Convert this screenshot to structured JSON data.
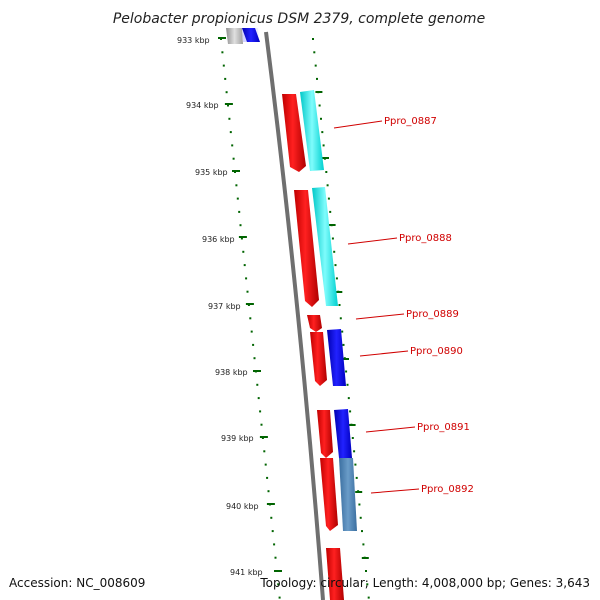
{
  "title": "Pelobacter propionicus DSM 2379, complete genome",
  "footer": {
    "accession": "Accession: NC_008609",
    "topology": "Topology: circular; Length: 4,008,000 bp; Genes: 3,643"
  },
  "colors": {
    "forward_strand": "#ff0000",
    "reverse_cyan": "#00e5e5",
    "reverse_blue": "#0000ee",
    "reverse_steel": "#4a7fb0",
    "backbone": "#888888",
    "tick": "#006400",
    "label": "#d00000"
  },
  "scale_labels": [
    "933 kbp",
    "934 kbp",
    "935 kbp",
    "936 kbp",
    "937 kbp",
    "938 kbp",
    "939 kbp",
    "940 kbp",
    "941 kbp"
  ],
  "genes": [
    {
      "name": "Ppro_0887"
    },
    {
      "name": "Ppro_0888"
    },
    {
      "name": "Ppro_0889"
    },
    {
      "name": "Ppro_0890"
    },
    {
      "name": "Ppro_0891"
    },
    {
      "name": "Ppro_0892"
    }
  ]
}
